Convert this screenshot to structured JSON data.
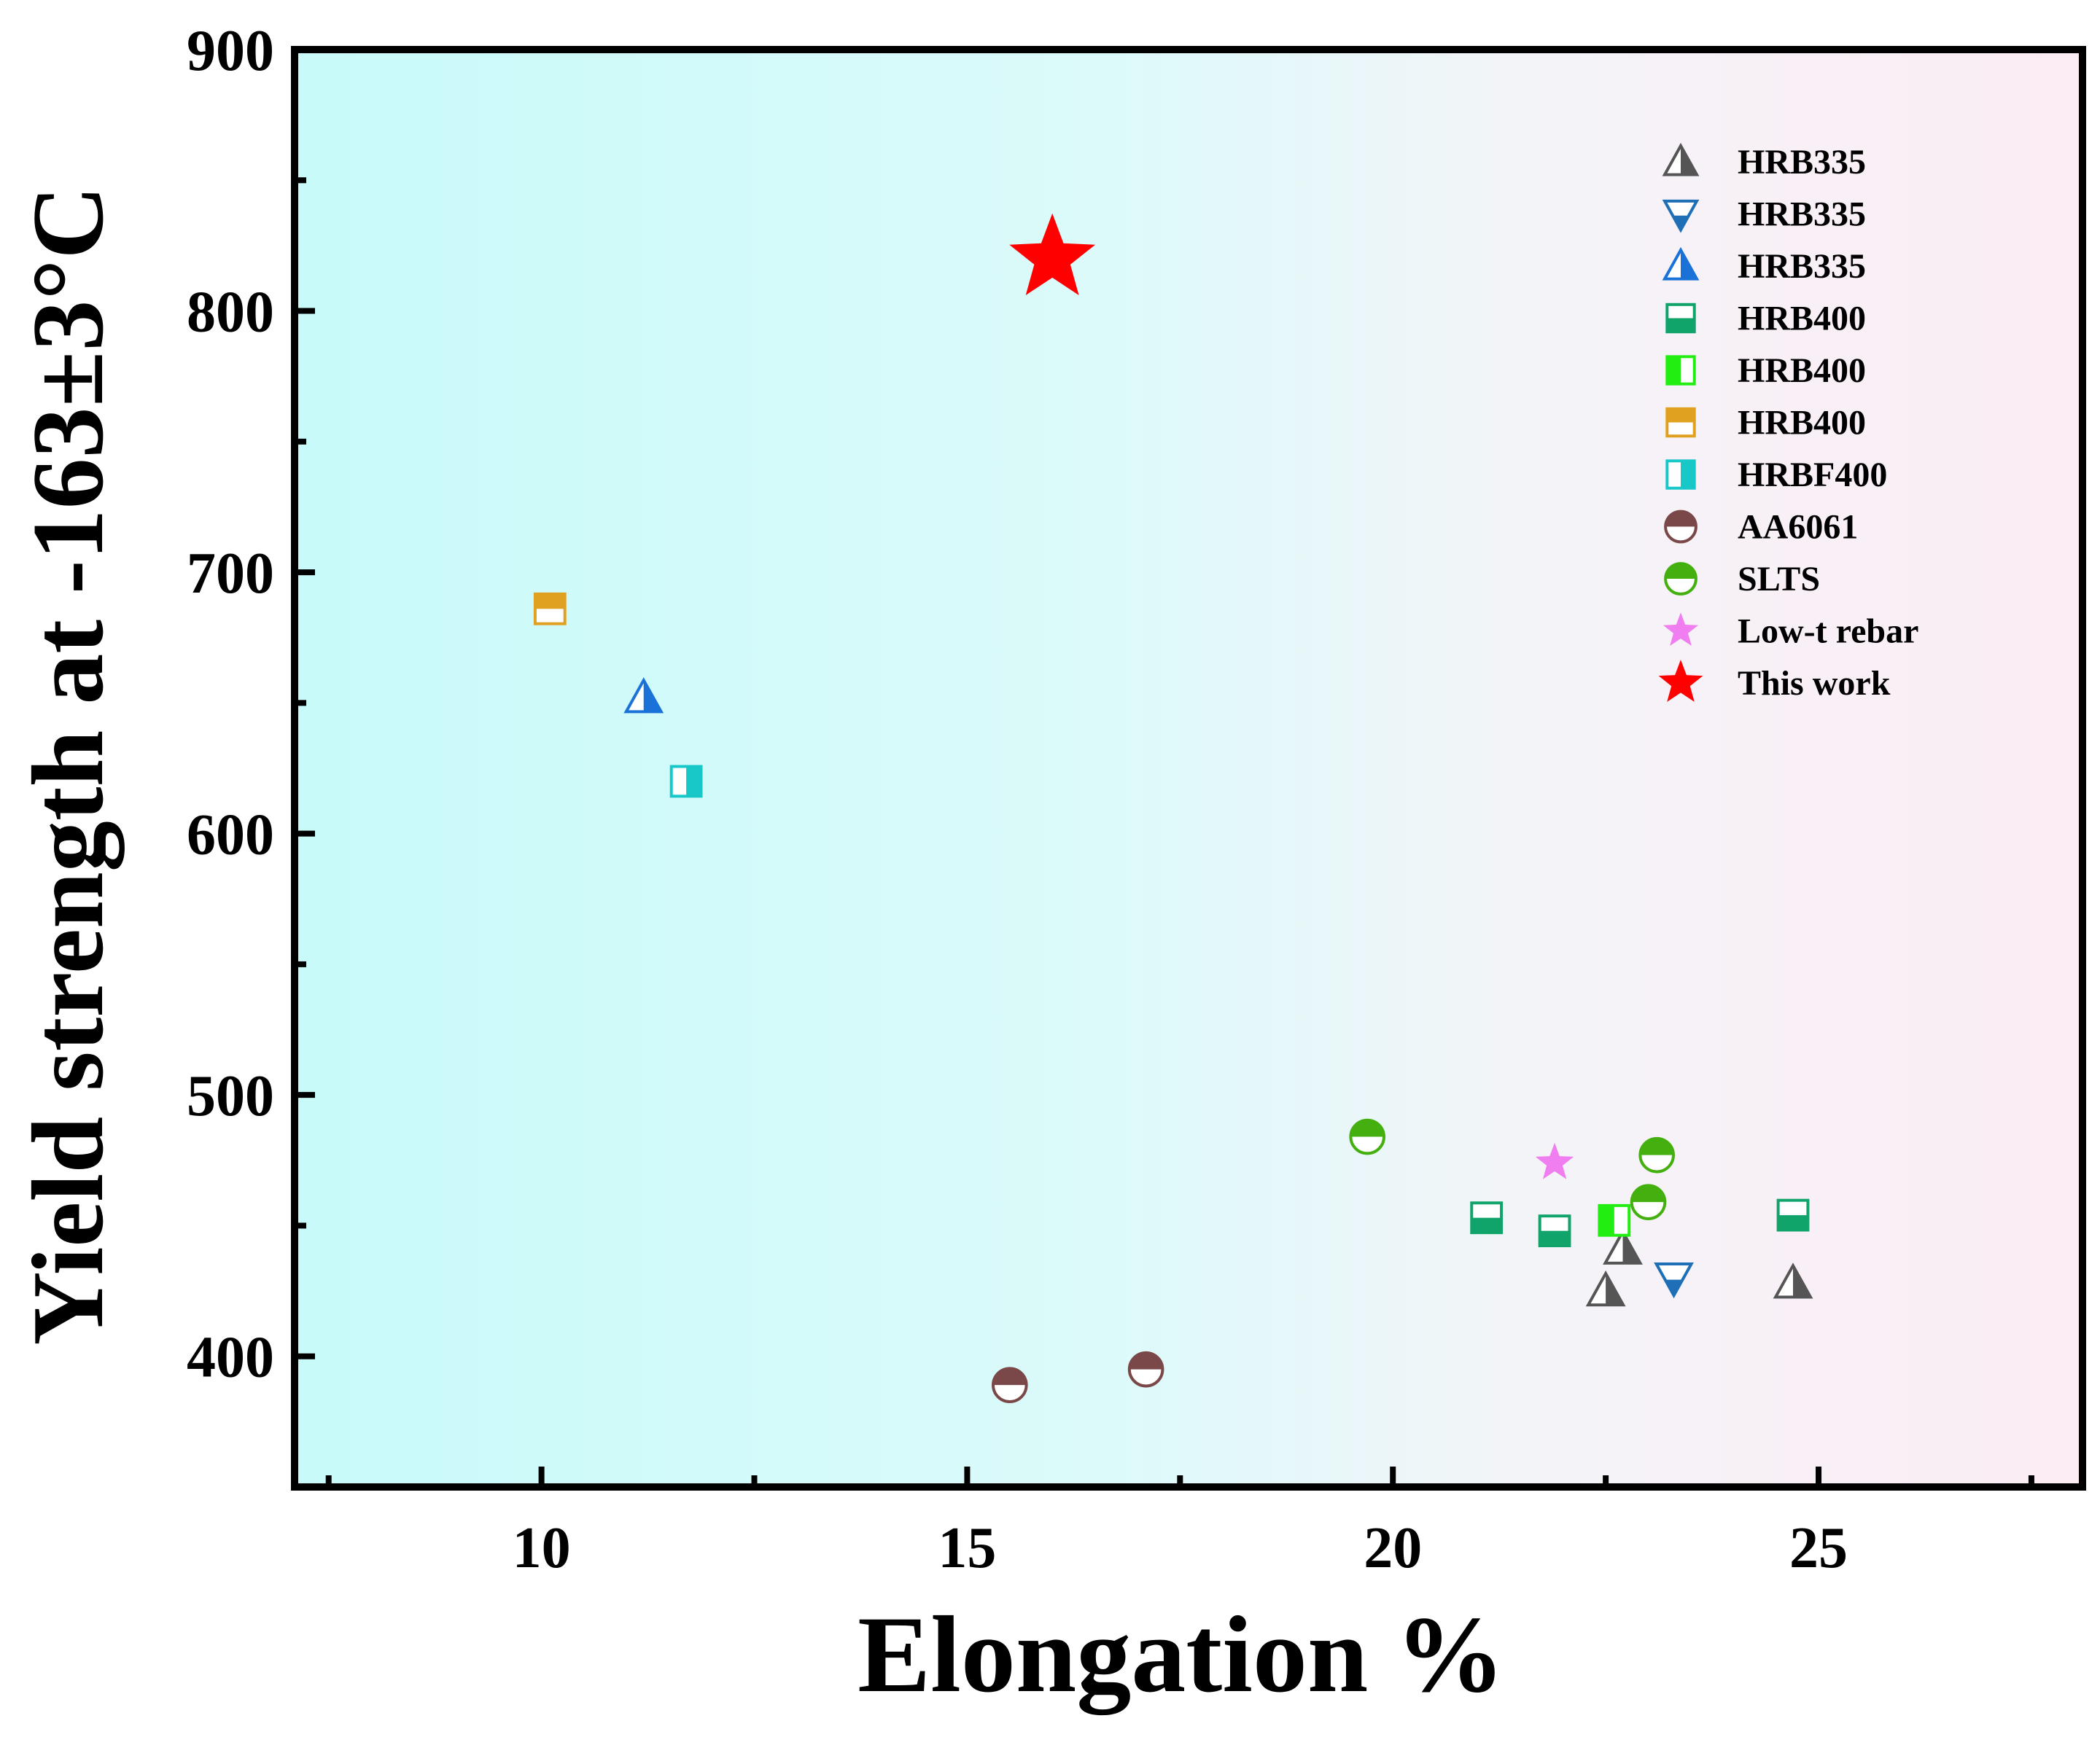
{
  "chart_data": {
    "type": "scatter",
    "title": "",
    "xlabel": "Elongation %",
    "ylabel": "Yield strength at -163±3°C",
    "xlim": [
      7.1,
      28.1
    ],
    "ylim": [
      350,
      900
    ],
    "xticks": [
      10,
      15,
      20,
      25
    ],
    "yticks": [
      400,
      500,
      600,
      700,
      800,
      900
    ],
    "background_gradient": [
      "#c8fafa",
      "#fcecf4"
    ],
    "legend_position": "top-right",
    "series": [
      {
        "name": "HRB335",
        "marker": "triangle-up-half",
        "color": "#555555",
        "points": [
          {
            "x": 22.5,
            "y": 425
          },
          {
            "x": 22.7,
            "y": 441
          },
          {
            "x": 24.7,
            "y": 428
          }
        ]
      },
      {
        "name": "HRB335",
        "marker": "triangle-down-half",
        "color": "#1e6fb5",
        "points": [
          {
            "x": 23.3,
            "y": 430
          }
        ]
      },
      {
        "name": "HRB335",
        "marker": "triangle-up-half",
        "color": "#1a72d8",
        "points": [
          {
            "x": 11.2,
            "y": 652
          }
        ]
      },
      {
        "name": "HRB400",
        "marker": "square-bottom-half",
        "color": "#10a36a",
        "points": [
          {
            "x": 21.1,
            "y": 453
          },
          {
            "x": 21.9,
            "y": 448
          },
          {
            "x": 24.7,
            "y": 454
          }
        ]
      },
      {
        "name": "HRB400",
        "marker": "square-left-half",
        "color": "#22ee11",
        "points": [
          {
            "x": 22.6,
            "y": 452
          }
        ]
      },
      {
        "name": "HRB400",
        "marker": "square-top-half",
        "color": "#e0a020",
        "points": [
          {
            "x": 10.1,
            "y": 686
          }
        ]
      },
      {
        "name": "HRBF400",
        "marker": "square-right-half",
        "color": "#18c8c8",
        "points": [
          {
            "x": 11.7,
            "y": 620
          }
        ]
      },
      {
        "name": "AA6061",
        "marker": "circle-top-half",
        "color": "#7a4848",
        "points": [
          {
            "x": 15.5,
            "y": 389
          },
          {
            "x": 17.1,
            "y": 395
          }
        ]
      },
      {
        "name": "SLTS",
        "marker": "circle-top-half",
        "color": "#44b010",
        "points": [
          {
            "x": 19.7,
            "y": 484
          },
          {
            "x": 23.1,
            "y": 477
          },
          {
            "x": 23.0,
            "y": 459
          }
        ]
      },
      {
        "name": "Low-t rebar",
        "marker": "star",
        "color": "#f07ef0",
        "points": [
          {
            "x": 21.9,
            "y": 474
          }
        ]
      },
      {
        "name": "This work",
        "marker": "star-large",
        "color": "#ff0000",
        "points": [
          {
            "x": 16.0,
            "y": 820
          }
        ]
      }
    ]
  }
}
